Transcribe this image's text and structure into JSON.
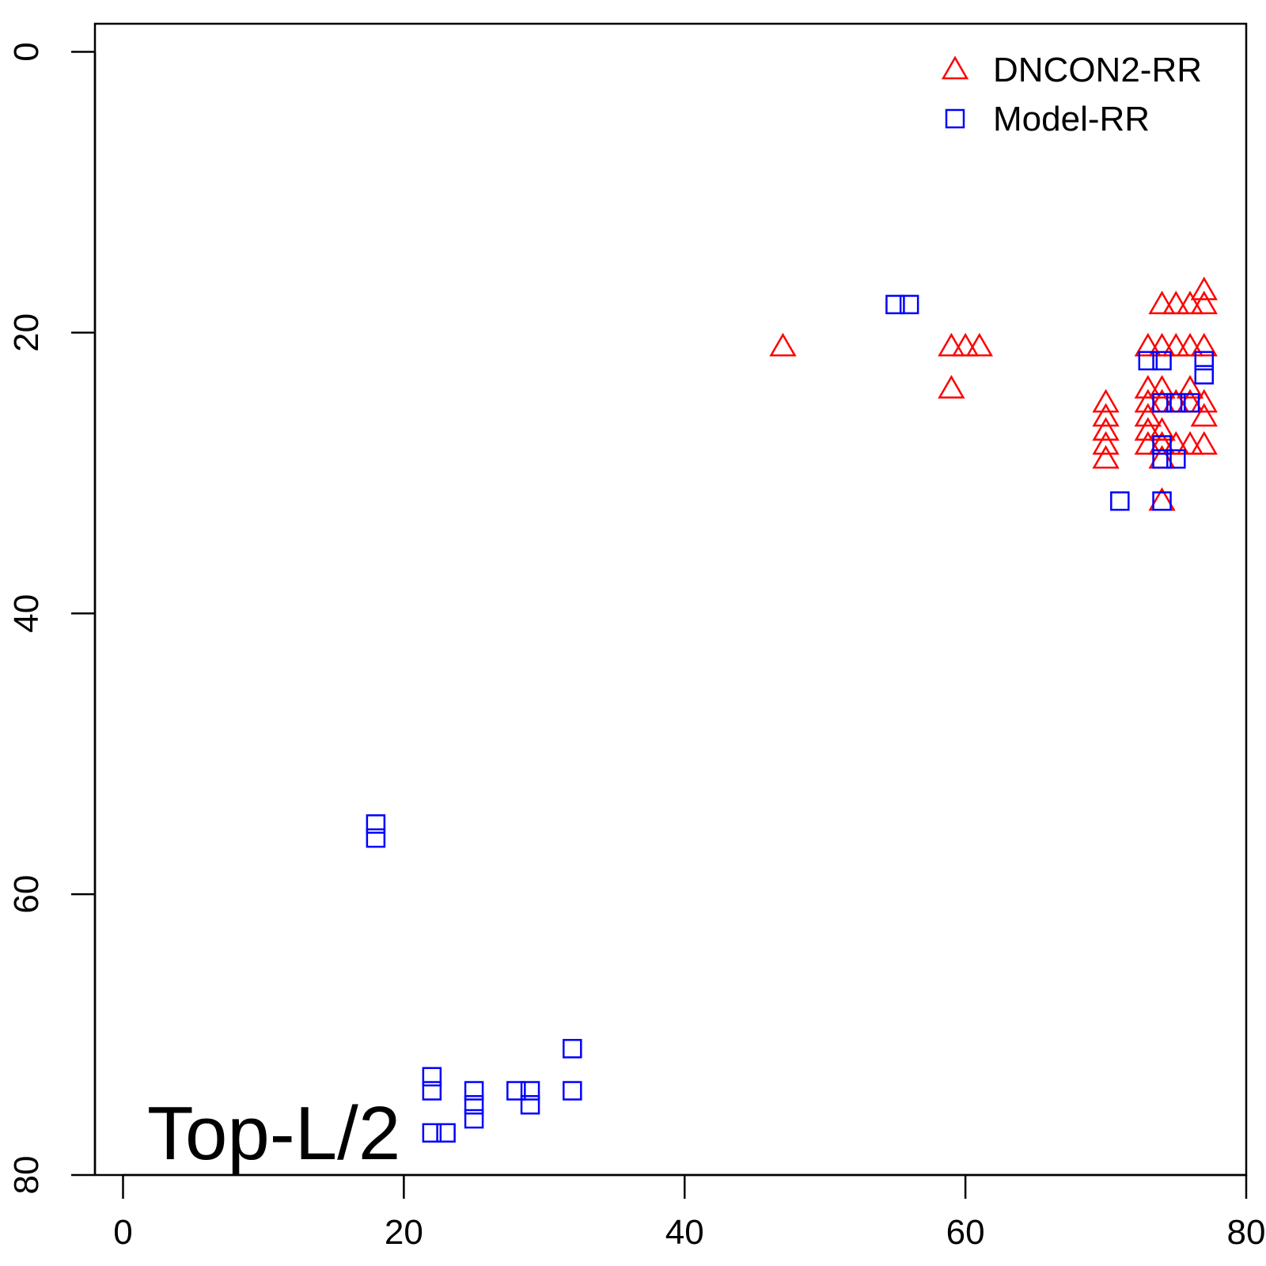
{
  "chart_data": {
    "type": "scatter",
    "title": "",
    "xlabel": "",
    "ylabel": "",
    "xlim": [
      -2,
      80
    ],
    "ylim": [
      80,
      -2
    ],
    "y_axis_reversed": true,
    "x_ticks": [
      0,
      20,
      40,
      60,
      80
    ],
    "y_ticks": [
      0,
      20,
      40,
      60,
      80
    ],
    "annotation": "Top-L/2",
    "legend_position": "top-right",
    "series": [
      {
        "name": "DNCON2-RR",
        "marker": "triangle",
        "color": "#ff0000",
        "points": [
          [
            47,
            21
          ],
          [
            59,
            21
          ],
          [
            60,
            21
          ],
          [
            61,
            21
          ],
          [
            59,
            24
          ],
          [
            70,
            25
          ],
          [
            70,
            26
          ],
          [
            70,
            27
          ],
          [
            70,
            28
          ],
          [
            70,
            29
          ],
          [
            73,
            21
          ],
          [
            73,
            24
          ],
          [
            73,
            25
          ],
          [
            73,
            26
          ],
          [
            73,
            27
          ],
          [
            73,
            28
          ],
          [
            74,
            18
          ],
          [
            74,
            21
          ],
          [
            74,
            24
          ],
          [
            74,
            25
          ],
          [
            74,
            27
          ],
          [
            74,
            28
          ],
          [
            74,
            29
          ],
          [
            74,
            32
          ],
          [
            75,
            18
          ],
          [
            75,
            21
          ],
          [
            75,
            25
          ],
          [
            75,
            28
          ],
          [
            76,
            18
          ],
          [
            76,
            21
          ],
          [
            76,
            24
          ],
          [
            76,
            25
          ],
          [
            76,
            28
          ],
          [
            77,
            17
          ],
          [
            77,
            18
          ],
          [
            77,
            21
          ],
          [
            77,
            25
          ],
          [
            77,
            26
          ],
          [
            77,
            28
          ]
        ]
      },
      {
        "name": "Model-RR",
        "marker": "square",
        "color": "#0000ff",
        "points": [
          [
            18,
            55
          ],
          [
            18,
            56
          ],
          [
            22,
            73
          ],
          [
            22,
            74
          ],
          [
            22,
            77
          ],
          [
            23,
            77
          ],
          [
            25,
            74
          ],
          [
            25,
            75
          ],
          [
            25,
            76
          ],
          [
            28,
            74
          ],
          [
            29,
            74
          ],
          [
            29,
            75
          ],
          [
            32,
            71
          ],
          [
            32,
            74
          ],
          [
            55,
            18
          ],
          [
            56,
            18
          ],
          [
            71,
            32
          ],
          [
            73,
            22
          ],
          [
            74,
            22
          ],
          [
            74,
            25
          ],
          [
            75,
            25
          ],
          [
            76,
            25
          ],
          [
            74,
            28
          ],
          [
            74,
            29
          ],
          [
            75,
            29
          ],
          [
            74,
            32
          ],
          [
            77,
            22
          ],
          [
            77,
            23
          ]
        ]
      }
    ]
  }
}
